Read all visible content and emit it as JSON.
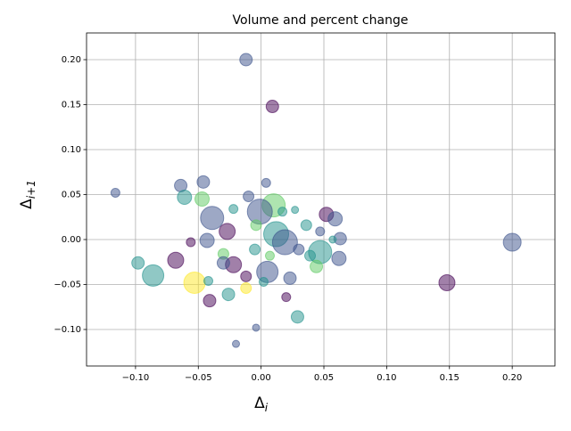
{
  "chart_data": {
    "type": "scatter",
    "title": "Volume and percent change",
    "xlabel": {
      "symbol": "Δ",
      "subscript": "i"
    },
    "ylabel": {
      "symbol": "Δ",
      "subscript": "i+1"
    },
    "x": [
      0.2,
      0.148,
      -0.086,
      -0.039,
      -0.053,
      0.01,
      -0.001,
      0.012,
      0.019,
      0.047,
      0.005,
      -0.012,
      0.009,
      -0.116,
      -0.064,
      -0.046,
      -0.061,
      -0.047,
      0.052,
      0.059,
      0.063,
      0.062,
      -0.098,
      -0.068,
      -0.041,
      -0.026,
      0.029,
      -0.004,
      -0.02,
      0.02,
      -0.022,
      -0.027,
      -0.043,
      -0.01,
      0.004,
      0.036,
      0.044,
      0.023,
      -0.012,
      -0.012,
      -0.042,
      -0.056,
      -0.022,
      0.047,
      -0.03,
      -0.005,
      0.03,
      0.007,
      -0.004,
      0.027,
      -0.03,
      0.017,
      0.039,
      0.057,
      0.002
    ],
    "values": [
      -0.003,
      -0.048,
      -0.04,
      0.024,
      -0.048,
      0.038,
      0.031,
      0.006,
      -0.003,
      -0.014,
      -0.036,
      0.2,
      0.148,
      0.052,
      0.06,
      0.064,
      0.047,
      0.045,
      0.028,
      0.023,
      0.001,
      -0.021,
      -0.026,
      -0.023,
      -0.068,
      -0.061,
      -0.086,
      -0.098,
      -0.116,
      -0.064,
      -0.028,
      0.009,
      -0.001,
      0.048,
      0.063,
      0.016,
      -0.03,
      -0.043,
      -0.041,
      -0.054,
      -0.046,
      -0.003,
      0.034,
      0.009,
      -0.016,
      -0.011,
      -0.011,
      -0.018,
      0.016,
      0.033,
      -0.026,
      0.031,
      -0.018,
      0.0,
      -0.047
    ],
    "sizes": [
      100,
      81,
      144,
      169,
      144,
      169,
      196,
      196,
      196,
      169,
      144,
      49,
      49,
      25,
      49,
      49,
      64,
      64,
      64,
      64,
      49,
      64,
      49,
      81,
      49,
      49,
      49,
      16,
      16,
      25,
      81,
      81,
      64,
      36,
      25,
      36,
      49,
      49,
      36,
      36,
      25,
      25,
      25,
      25,
      36,
      36,
      36,
      25,
      36,
      16,
      49,
      25,
      36,
      16,
      25
    ],
    "colors": [
      "#3b528b",
      "#440154",
      "#21918c",
      "#3b528b",
      "#fde725",
      "#5ec962",
      "#3b528b",
      "#21918c",
      "#3b528b",
      "#21918c",
      "#3b528b",
      "#3b528b",
      "#440154",
      "#3b528b",
      "#3b528b",
      "#3b528b",
      "#21918c",
      "#5ec962",
      "#440154",
      "#3b528b",
      "#3b528b",
      "#3b528b",
      "#21918c",
      "#440154",
      "#440154",
      "#21918c",
      "#21918c",
      "#3b528b",
      "#3b528b",
      "#440154",
      "#440154",
      "#440154",
      "#3b528b",
      "#3b528b",
      "#3b528b",
      "#21918c",
      "#5ec962",
      "#3b528b",
      "#440154",
      "#fde725",
      "#21918c",
      "#440154",
      "#21918c",
      "#3b528b",
      "#5ec962",
      "#21918c",
      "#3b528b",
      "#5ec962",
      "#5ec962",
      "#21918c",
      "#3b528b",
      "#21918c",
      "#21918c",
      "#21918c",
      "#21918c"
    ],
    "xlim": [
      -0.139,
      0.234
    ],
    "ylim": [
      -0.1406,
      0.2297
    ],
    "xticks": [
      {
        "value": -0.1,
        "label": "−0.10"
      },
      {
        "value": -0.05,
        "label": "−0.05"
      },
      {
        "value": 0,
        "label": "0.00"
      },
      {
        "value": 0.05,
        "label": "0.05"
      },
      {
        "value": 0.1,
        "label": "0.10"
      },
      {
        "value": 0.15,
        "label": "0.15"
      },
      {
        "value": 0.2,
        "label": "0.20"
      }
    ],
    "yticks": [
      {
        "value": -0.1,
        "label": "−0.10"
      },
      {
        "value": -0.05,
        "label": "−0.05"
      },
      {
        "value": 0,
        "label": "0.00"
      },
      {
        "value": 0.05,
        "label": "0.05"
      },
      {
        "value": 0.1,
        "label": "0.10"
      },
      {
        "value": 0.15,
        "label": "0.15"
      },
      {
        "value": 0.2,
        "label": "0.20"
      }
    ],
    "grid": true
  }
}
